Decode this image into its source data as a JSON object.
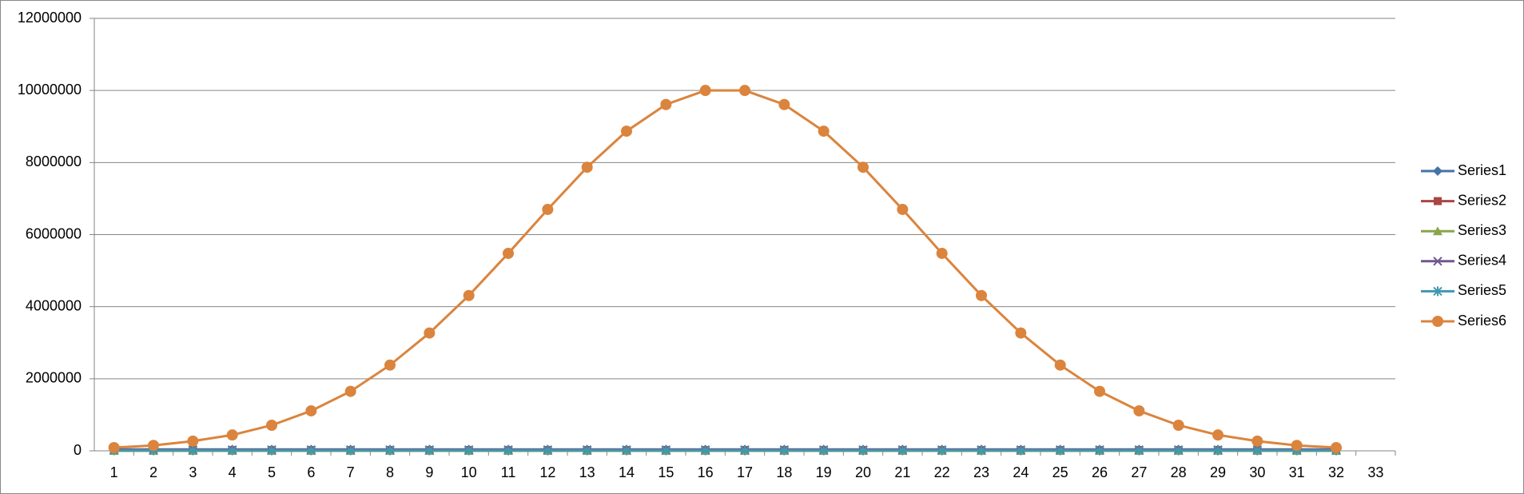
{
  "chart_data": {
    "type": "line",
    "categories": [
      1,
      2,
      3,
      4,
      5,
      6,
      7,
      8,
      9,
      10,
      11,
      12,
      13,
      14,
      15,
      16,
      17,
      18,
      19,
      20,
      21,
      22,
      23,
      24,
      25,
      26,
      27,
      28,
      29,
      30,
      31,
      32,
      33
    ],
    "series": [
      {
        "name": "Series1",
        "color": "#4572a7",
        "marker": "diamond",
        "values": [
          40000,
          40000,
          40000,
          40000,
          40000,
          40000,
          40000,
          40000,
          40000,
          40000,
          40000,
          40000,
          40000,
          40000,
          40000,
          40000,
          40000,
          40000,
          40000,
          40000,
          40000,
          40000,
          40000,
          40000,
          40000,
          40000,
          40000,
          40000,
          40000,
          40000,
          40000,
          40000,
          null
        ]
      },
      {
        "name": "Series2",
        "color": "#aa4643",
        "marker": "square",
        "values": [
          20000,
          20000,
          20000,
          20000,
          20000,
          20000,
          20000,
          20000,
          20000,
          20000,
          20000,
          20000,
          20000,
          20000,
          20000,
          20000,
          20000,
          20000,
          20000,
          20000,
          20000,
          20000,
          20000,
          20000,
          20000,
          20000,
          20000,
          20000,
          20000,
          20000,
          20000,
          20000,
          null
        ]
      },
      {
        "name": "Series3",
        "color": "#89a54e",
        "marker": "triangle",
        "values": [
          0,
          0,
          0,
          0,
          0,
          0,
          0,
          0,
          0,
          0,
          0,
          0,
          0,
          0,
          0,
          0,
          0,
          0,
          0,
          0,
          0,
          0,
          0,
          0,
          0,
          0,
          0,
          0,
          0,
          0,
          0,
          0,
          null
        ]
      },
      {
        "name": "Series4",
        "color": "#71588f",
        "marker": "x",
        "values": [
          30000,
          30000,
          30000,
          30000,
          30000,
          30000,
          30000,
          30000,
          30000,
          30000,
          30000,
          30000,
          30000,
          30000,
          30000,
          30000,
          30000,
          30000,
          30000,
          30000,
          30000,
          30000,
          30000,
          30000,
          30000,
          30000,
          30000,
          30000,
          30000,
          30000,
          30000,
          30000,
          null
        ]
      },
      {
        "name": "Series5",
        "color": "#4198af",
        "marker": "star",
        "values": [
          10000,
          10000,
          10000,
          10000,
          10000,
          10000,
          10000,
          10000,
          10000,
          10000,
          10000,
          10000,
          10000,
          10000,
          10000,
          10000,
          10000,
          10000,
          10000,
          10000,
          10000,
          10000,
          10000,
          10000,
          10000,
          10000,
          10000,
          10000,
          10000,
          10000,
          10000,
          10000,
          null
        ]
      },
      {
        "name": "Series6",
        "color": "#db843d",
        "marker": "circle",
        "values": [
          90000,
          150000,
          270000,
          440000,
          710000,
          1110000,
          1650000,
          2380000,
          3270000,
          4310000,
          5480000,
          6700000,
          7870000,
          8870000,
          9610000,
          10000000,
          10000000,
          9610000,
          8870000,
          7870000,
          6700000,
          5480000,
          4310000,
          3270000,
          2380000,
          1650000,
          1110000,
          710000,
          440000,
          270000,
          150000,
          90000,
          null
        ]
      }
    ],
    "ylim": [
      0,
      12000000
    ],
    "yticks": [
      0,
      2000000,
      4000000,
      6000000,
      8000000,
      10000000,
      12000000
    ],
    "grid": true,
    "legend": "right"
  }
}
